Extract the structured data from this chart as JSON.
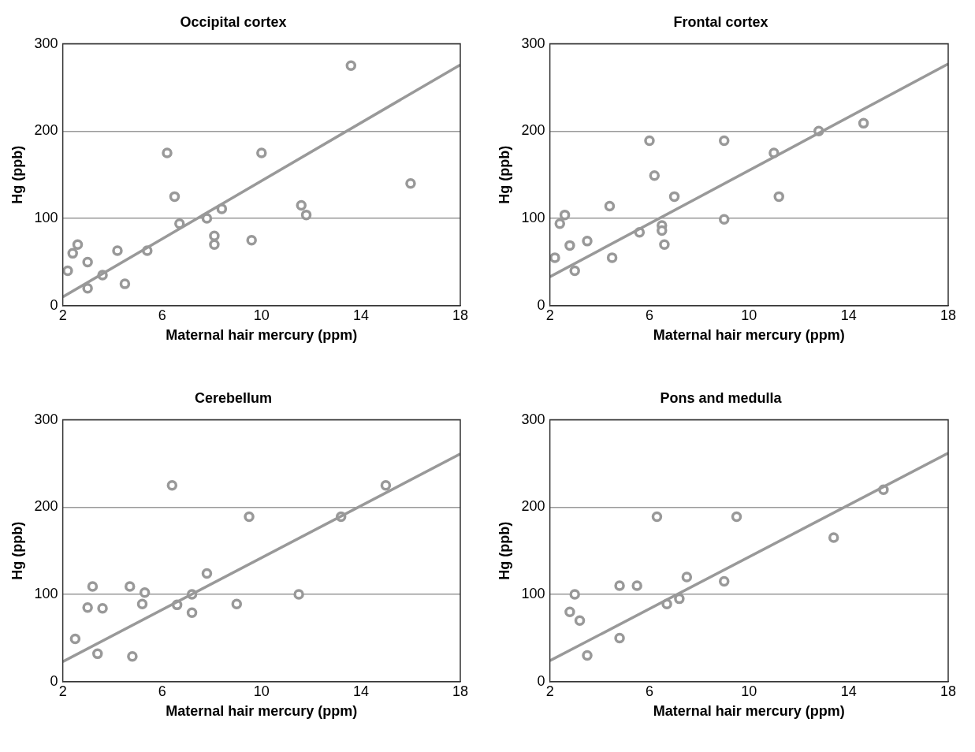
{
  "chart_data": [
    {
      "type": "scatter",
      "title": "Occipital cortex",
      "xlabel": "Maternal hair mercury (ppm)",
      "ylabel": "Hg (ppb)",
      "xlim": [
        2,
        18
      ],
      "xticks": [
        2,
        6,
        10,
        14,
        18
      ],
      "ylim": [
        0,
        300
      ],
      "yticks": [
        0,
        100,
        200,
        300
      ],
      "grid": "y",
      "legend": false,
      "series": [
        {
          "marker": "circle",
          "color": "#999999",
          "x": [
            2.2,
            2.4,
            2.6,
            3,
            3,
            3.6,
            4.2,
            4.5,
            5.4,
            6.2,
            6.5,
            6.7,
            7.8,
            8.1,
            8.1,
            8.4,
            9.6,
            10,
            11.6,
            11.8,
            13.6,
            16
          ],
          "values": [
            40,
            60,
            70,
            50,
            20,
            35,
            63,
            25,
            63,
            175,
            125,
            94,
            100,
            80,
            70,
            111,
            75,
            175,
            115,
            104,
            275,
            140
          ]
        },
        {
          "type": "line",
          "color": "#999999",
          "x": [
            2,
            18
          ],
          "values": [
            10,
            276
          ]
        }
      ]
    },
    {
      "type": "scatter",
      "title": "Frontal cortex",
      "xlabel": "Maternal hair mercury (ppm)",
      "ylabel": "Hg (ppb)",
      "xlim": [
        2,
        18
      ],
      "xticks": [
        2,
        6,
        10,
        14,
        18
      ],
      "ylim": [
        0,
        300
      ],
      "yticks": [
        0,
        100,
        200,
        300
      ],
      "grid": "y",
      "legend": false,
      "series": [
        {
          "marker": "circle",
          "color": "#999999",
          "x": [
            2.2,
            2.4,
            2.6,
            2.8,
            3,
            3.5,
            4.4,
            4.5,
            5.6,
            6,
            6.2,
            6.5,
            6.5,
            6.6,
            7,
            9,
            9,
            11,
            11.2,
            12.8,
            14.6
          ],
          "values": [
            55,
            94,
            104,
            69,
            40,
            74,
            114,
            55,
            84,
            189,
            149,
            92,
            86,
            70,
            125,
            189,
            99,
            175,
            125,
            200,
            209
          ]
        },
        {
          "type": "line",
          "color": "#999999",
          "x": [
            2,
            18
          ],
          "values": [
            33,
            277
          ]
        }
      ]
    },
    {
      "type": "scatter",
      "title": "Cerebellum",
      "xlabel": "Maternal hair mercury (ppm)",
      "ylabel": "Hg (ppb)",
      "xlim": [
        2,
        18
      ],
      "xticks": [
        2,
        6,
        10,
        14,
        18
      ],
      "ylim": [
        0,
        300
      ],
      "yticks": [
        0,
        100,
        200,
        300
      ],
      "grid": "y",
      "legend": false,
      "series": [
        {
          "marker": "circle",
          "color": "#999999",
          "x": [
            2.5,
            3,
            3.2,
            3.4,
            3.6,
            4.7,
            4.8,
            5.2,
            5.3,
            6.4,
            6.6,
            7.2,
            7.2,
            7.8,
            9,
            9.5,
            11.5,
            13.2,
            15
          ],
          "values": [
            49,
            85,
            109,
            32,
            84,
            109,
            29,
            89,
            102,
            225,
            88,
            100,
            79,
            124,
            89,
            189,
            100,
            189,
            225
          ]
        },
        {
          "type": "line",
          "color": "#999999",
          "x": [
            2,
            18
          ],
          "values": [
            23,
            261
          ]
        }
      ]
    },
    {
      "type": "scatter",
      "title": "Pons and medulla",
      "xlabel": "Maternal hair mercury (ppm)",
      "ylabel": "Hg (ppb)",
      "xlim": [
        2,
        18
      ],
      "xticks": [
        2,
        6,
        10,
        14,
        18
      ],
      "ylim": [
        0,
        300
      ],
      "yticks": [
        0,
        100,
        200,
        300
      ],
      "grid": "y",
      "legend": false,
      "series": [
        {
          "marker": "circle",
          "color": "#999999",
          "x": [
            2.8,
            3,
            3.2,
            3.5,
            4.8,
            4.8,
            5.5,
            6.3,
            6.7,
            7.2,
            7.5,
            9,
            9.5,
            13.4,
            15.4
          ],
          "values": [
            80,
            100,
            70,
            30,
            110,
            50,
            110,
            189,
            89,
            95,
            120,
            115,
            189,
            165,
            220
          ]
        },
        {
          "type": "line",
          "color": "#999999",
          "x": [
            2,
            18
          ],
          "values": [
            24,
            262
          ]
        }
      ]
    }
  ]
}
